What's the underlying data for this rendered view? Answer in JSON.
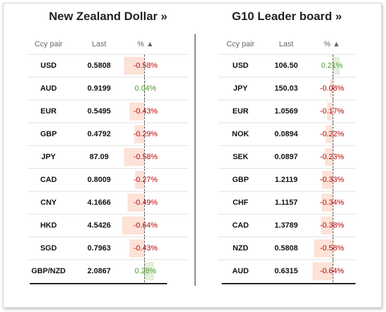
{
  "panels": [
    {
      "title": "New Zealand Dollar »",
      "headers": {
        "pair": "Ccy pair",
        "last": "Last",
        "pct": "% ▲"
      },
      "rows": [
        {
          "pair": "USD",
          "last": "0.5808",
          "pct": "-0.58%",
          "value": -0.58
        },
        {
          "pair": "AUD",
          "last": "0.9199",
          "pct": "0.04%",
          "value": 0.04
        },
        {
          "pair": "EUR",
          "last": "0.5495",
          "pct": "-0.43%",
          "value": -0.43
        },
        {
          "pair": "GBP",
          "last": "0.4792",
          "pct": "-0.29%",
          "value": -0.29
        },
        {
          "pair": "JPY",
          "last": "87.09",
          "pct": "-0.58%",
          "value": -0.58
        },
        {
          "pair": "CAD",
          "last": "0.8009",
          "pct": "-0.27%",
          "value": -0.27
        },
        {
          "pair": "CNY",
          "last": "4.1666",
          "pct": "-0.49%",
          "value": -0.49
        },
        {
          "pair": "HKD",
          "last": "4.5426",
          "pct": "-0.64%",
          "value": -0.64
        },
        {
          "pair": "SGD",
          "last": "0.7963",
          "pct": "-0.43%",
          "value": -0.43
        },
        {
          "pair": "GBP/NZD",
          "last": "2.0867",
          "pct": "0.28%",
          "value": 0.28
        }
      ]
    },
    {
      "title": "G10 Leader board »",
      "headers": {
        "pair": "Ccy pair",
        "last": "Last",
        "pct": "% ▲"
      },
      "rows": [
        {
          "pair": "USD",
          "last": "106.50",
          "pct": "0.21%",
          "value": 0.21
        },
        {
          "pair": "JPY",
          "last": "150.03",
          "pct": "-0.08%",
          "value": -0.08
        },
        {
          "pair": "EUR",
          "last": "1.0569",
          "pct": "-0.17%",
          "value": -0.17
        },
        {
          "pair": "NOK",
          "last": "0.0894",
          "pct": "-0.22%",
          "value": -0.22
        },
        {
          "pair": "SEK",
          "last": "0.0897",
          "pct": "-0.23%",
          "value": -0.23
        },
        {
          "pair": "GBP",
          "last": "1.2119",
          "pct": "-0.33%",
          "value": -0.33
        },
        {
          "pair": "CHF",
          "last": "1.1157",
          "pct": "-0.34%",
          "value": -0.34
        },
        {
          "pair": "CAD",
          "last": "1.3789",
          "pct": "-0.38%",
          "value": -0.38
        },
        {
          "pair": "NZD",
          "last": "0.5808",
          "pct": "-0.58%",
          "value": -0.58
        },
        {
          "pair": "AUD",
          "last": "0.6315",
          "pct": "-0.64%",
          "value": -0.64
        }
      ]
    }
  ],
  "colors": {
    "negative": "#c00000",
    "positive": "#4e9a2e",
    "neg_bar": "#fde2d8",
    "pos_bar": "#e2efda"
  }
}
